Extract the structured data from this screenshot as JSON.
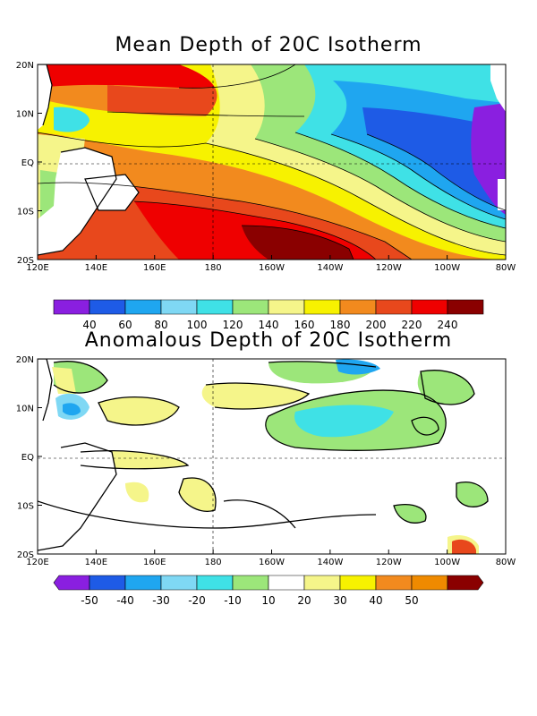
{
  "panel1": {
    "title": "Mean Depth of 20C Isotherm",
    "lat_labels": [
      "20N",
      "10N",
      "EQ",
      "10S",
      "20S"
    ],
    "lon_labels": [
      "120E",
      "140E",
      "160E",
      "180",
      "160W",
      "140W",
      "120W",
      "100W",
      "80W"
    ],
    "colorbar": {
      "labels": [
        "40",
        "60",
        "80",
        "100",
        "120",
        "140",
        "160",
        "180",
        "200",
        "220",
        "240"
      ],
      "colors": [
        "#8a1fe0",
        "#1e5be6",
        "#1fa6f0",
        "#7fd8f4",
        "#3fe1e6",
        "#9ce67a",
        "#f5f58a",
        "#f7f200",
        "#f28a1e",
        "#e8481c",
        "#ef0000",
        "#8a0000"
      ]
    }
  },
  "panel2": {
    "title": "Anomalous Depth of 20C Isotherm",
    "lat_labels": [
      "20N",
      "10N",
      "EQ",
      "10S",
      "20S"
    ],
    "lon_labels": [
      "120E",
      "140E",
      "160E",
      "180",
      "160W",
      "140W",
      "120W",
      "100W",
      "80W"
    ],
    "colorbar": {
      "labels": [
        "-50",
        "-40",
        "-30",
        "-20",
        "-10",
        "10",
        "20",
        "30",
        "40",
        "50"
      ],
      "colors": [
        "#8a1fe0",
        "#1e5be6",
        "#1fa6f0",
        "#7fd8f4",
        "#3fe1e6",
        "#9ce67a",
        "#ffffff",
        "#f5f58a",
        "#f7f200",
        "#f28a1e",
        "#ef8a00",
        "#8a0000"
      ]
    }
  }
}
